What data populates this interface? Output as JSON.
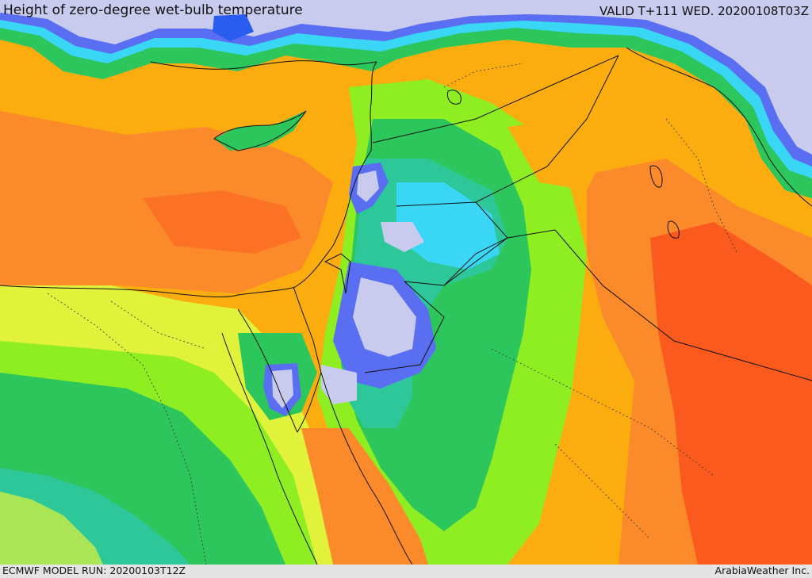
{
  "header": {
    "title": "Height of zero-degree wet-bulb temperature",
    "valid_time": "VALID T+111 WED. 20200108T03Z"
  },
  "footer": {
    "model_run": "ECMWF MODEL RUN: 20200103T12Z",
    "credit": "ArabiaWeather Inc."
  },
  "palette": {
    "lowest": "#c8cbee",
    "very_low": "#5a6ef2",
    "low": "#3ad6f5",
    "low_mid": "#2ec79a",
    "mid_low": "#2cc65c",
    "mid": "#8fee22",
    "mid_high": "#e0f23a",
    "high": "#fbad10",
    "higher": "#fb8a2a",
    "highest": "#fb5a1e",
    "border": "#111111"
  }
}
